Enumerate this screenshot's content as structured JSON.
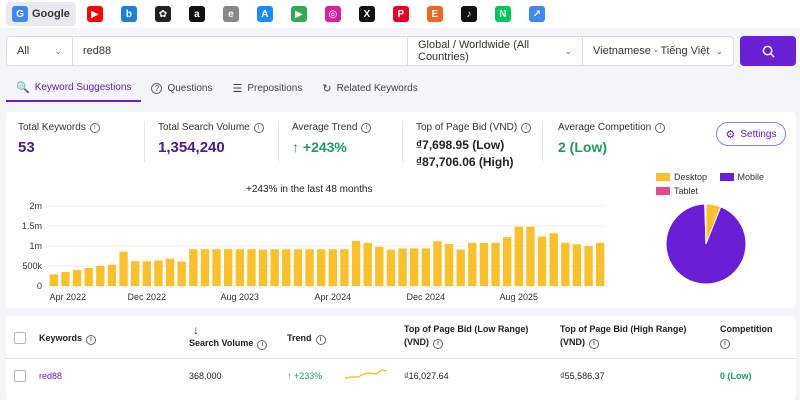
{
  "sources": [
    {
      "name": "google-icon",
      "label": "Google",
      "color": "#4285f4",
      "glyph": "G",
      "active": true
    },
    {
      "name": "youtube-icon",
      "color": "#ff0000",
      "glyph": "▶"
    },
    {
      "name": "bing-icon",
      "color": "#1d7fd6",
      "glyph": "b"
    },
    {
      "name": "appstore-alt-icon",
      "color": "#222222",
      "glyph": "✿"
    },
    {
      "name": "amazon-icon",
      "color": "#111111",
      "glyph": "a"
    },
    {
      "name": "ebay-icon",
      "color": "#888888",
      "glyph": "e"
    },
    {
      "name": "appstore-icon",
      "color": "#1a8cff",
      "glyph": "A"
    },
    {
      "name": "playstore-icon",
      "color": "#34a853",
      "glyph": "▶"
    },
    {
      "name": "instagram-icon",
      "color": "#d6249f",
      "glyph": "◎"
    },
    {
      "name": "x-icon",
      "color": "#111111",
      "glyph": "X"
    },
    {
      "name": "pinterest-icon",
      "color": "#e60023",
      "glyph": "P"
    },
    {
      "name": "etsy-icon",
      "color": "#f16521",
      "glyph": "E"
    },
    {
      "name": "tiktok-icon",
      "color": "#111111",
      "glyph": "♪"
    },
    {
      "name": "naver-icon",
      "color": "#03c75a",
      "glyph": "N"
    },
    {
      "name": "trends-icon",
      "color": "#4285f4",
      "glyph": "↗"
    }
  ],
  "search": {
    "type_value": "All",
    "query": "red88",
    "location": "Global / Worldwide (All Countries)",
    "language": "Vietnamese - Tiếng Việt"
  },
  "tabs": [
    {
      "label": "Keyword Suggestions",
      "icon": "🔍",
      "active": true
    },
    {
      "label": "Questions",
      "icon": "?"
    },
    {
      "label": "Prepositions",
      "icon": "☰"
    },
    {
      "label": "Related Keywords",
      "icon": "↻"
    }
  ],
  "stats": {
    "total_keywords_label": "Total Keywords",
    "total_keywords": "53",
    "total_volume_label": "Total Search Volume",
    "total_volume": "1,354,240",
    "avg_trend_label": "Average Trend",
    "avg_trend": "↑ +243%",
    "bid_label": "Top of Page Bid (VND)",
    "bid_low": "₫7,698.95 (Low)",
    "bid_high": "₫87,706.06 (High)",
    "competition_label": "Average Competition",
    "competition": "2 (Low)",
    "settings_label": "Settings"
  },
  "chart_data": [
    {
      "type": "bar",
      "title": "+243% in the last 48 months",
      "x_tick_labels": [
        "Apr 2022",
        "Dec 2022",
        "Aug 2023",
        "Apr 2024",
        "Dec 2024",
        "Aug 2025"
      ],
      "y_tick_labels": [
        "0",
        "500k",
        "1m",
        "1.5m",
        "2m"
      ],
      "ylim": [
        0,
        2000000
      ],
      "values": [
        290000,
        350000,
        400000,
        450000,
        500000,
        530000,
        860000,
        620000,
        620000,
        640000,
        680000,
        610000,
        920000,
        920000,
        920000,
        920000,
        920000,
        920000,
        910000,
        920000,
        920000,
        920000,
        920000,
        920000,
        920000,
        920000,
        1130000,
        1080000,
        980000,
        910000,
        940000,
        940000,
        940000,
        1120000,
        1050000,
        910000,
        1080000,
        1080000,
        1080000,
        1220000,
        1480000,
        1480000,
        1240000,
        1320000,
        1080000,
        1040000,
        1000000,
        1080000
      ],
      "color": "#fbc02d"
    },
    {
      "type": "pie",
      "legend": [
        "Desktop",
        "Mobile",
        "Tablet"
      ],
      "values": [
        6,
        93.5,
        0.5
      ],
      "colors": [
        "#fbc02d",
        "#6a1fd6",
        "#e84a8f"
      ]
    }
  ],
  "table": {
    "headers": {
      "keywords": "Keywords",
      "volume": "Search Volume",
      "trend": "Trend",
      "bid_low": "Top of Page Bid (Low Range) (VND)",
      "bid_high": "Top of Page Bid (High Range) (VND)",
      "competition": "Competition"
    },
    "rows": [
      {
        "keyword": "red88",
        "volume": "368,000",
        "trend": "↑ +233%",
        "bid_low": "₫16,027.64",
        "bid_high": "₫55,586.37",
        "competition": "0 (Low)"
      }
    ]
  }
}
